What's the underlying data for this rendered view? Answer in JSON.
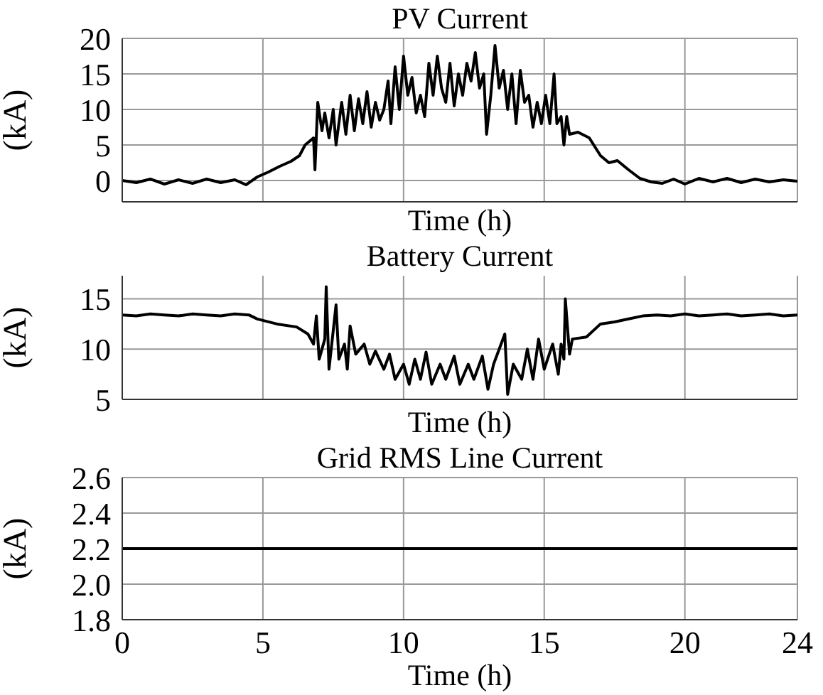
{
  "chart_data": [
    {
      "type": "line",
      "title": "PV Current",
      "xlabel": "Time (h)",
      "ylabel": "(kA)",
      "xlim": [
        0,
        24
      ],
      "xticks": [
        0,
        5,
        10,
        15,
        20,
        24
      ],
      "ylim": [
        -3,
        20
      ],
      "yticks": [
        0,
        5,
        10,
        15,
        20
      ],
      "grid": true,
      "tick_labels": "y",
      "series": [
        {
          "color": "#000000",
          "x": [
            0,
            0.5,
            1,
            1.5,
            2,
            2.5,
            3,
            3.5,
            4,
            4.4,
            4.8,
            5.2,
            5.6,
            6,
            6.3,
            6.5,
            6.8,
            6.85,
            6.95,
            7.1,
            7.2,
            7.35,
            7.5,
            7.6,
            7.8,
            7.95,
            8.1,
            8.25,
            8.4,
            8.55,
            8.7,
            8.85,
            9,
            9.15,
            9.3,
            9.45,
            9.55,
            9.7,
            9.85,
            10,
            10.15,
            10.3,
            10.45,
            10.6,
            10.75,
            10.9,
            11.05,
            11.2,
            11.35,
            11.5,
            11.65,
            11.8,
            11.95,
            12.1,
            12.25,
            12.4,
            12.55,
            12.7,
            12.85,
            12.95,
            13.1,
            13.25,
            13.4,
            13.55,
            13.7,
            13.85,
            14,
            14.15,
            14.3,
            14.45,
            14.6,
            14.75,
            14.9,
            15.05,
            15.2,
            15.35,
            15.45,
            15.6,
            15.7,
            15.8,
            15.9,
            16.2,
            16.6,
            17,
            17.3,
            17.6,
            18,
            18.4,
            18.8,
            19.2,
            19.6,
            20,
            20.5,
            21,
            21.5,
            22,
            22.5,
            23,
            23.5,
            24
          ],
          "values": [
            0,
            -0.3,
            0.2,
            -0.5,
            0.1,
            -0.4,
            0.2,
            -0.3,
            0.1,
            -0.6,
            0.5,
            1.2,
            2,
            2.7,
            3.5,
            5,
            6,
            1.5,
            11,
            7,
            9.5,
            6,
            10,
            5,
            11,
            6.5,
            12,
            7,
            11.5,
            8,
            12.5,
            7.5,
            11,
            8.5,
            10,
            14,
            8,
            16,
            10,
            17.5,
            12,
            14.5,
            9.5,
            12,
            9,
            16.5,
            12,
            17.5,
            13,
            11,
            16.5,
            10.5,
            15,
            12,
            16.5,
            14,
            18,
            13,
            15,
            6.5,
            12,
            19,
            13,
            15.5,
            10,
            15,
            8,
            15.5,
            11,
            12,
            7.5,
            11,
            8,
            12,
            8,
            15,
            8,
            9,
            5,
            9,
            6.5,
            6.8,
            6,
            3.5,
            2.5,
            2.8,
            1.5,
            0.3,
            -0.2,
            -0.4,
            0.2,
            -0.5,
            0.3,
            -0.2,
            0.3,
            -0.3,
            0.2,
            -0.2,
            0.1,
            -0.1
          ]
        }
      ]
    },
    {
      "type": "line",
      "title": "Battery Current",
      "xlabel": "Time (h)",
      "ylabel": "(kA)",
      "xlim": [
        0,
        24
      ],
      "xticks": [
        0,
        5,
        10,
        15,
        20,
        24
      ],
      "ylim": [
        5,
        17.3
      ],
      "yticks": [
        5,
        10,
        15
      ],
      "grid": true,
      "tick_labels": "y",
      "series": [
        {
          "color": "#000000",
          "x": [
            0,
            0.5,
            1,
            1.5,
            2,
            2.5,
            3,
            3.5,
            4,
            4.5,
            4.8,
            5.5,
            6.2,
            6.6,
            6.8,
            6.9,
            7,
            7.2,
            7.25,
            7.35,
            7.6,
            7.7,
            7.9,
            8,
            8.1,
            8.3,
            8.6,
            8.8,
            9,
            9.3,
            9.5,
            9.7,
            10,
            10.2,
            10.4,
            10.6,
            10.8,
            11,
            11.3,
            11.5,
            11.8,
            12,
            12.3,
            12.5,
            12.8,
            13,
            13.2,
            13.6,
            13.7,
            13.9,
            14.2,
            14.4,
            14.6,
            14.8,
            15,
            15.3,
            15.5,
            15.6,
            15.7,
            15.75,
            15.9,
            16,
            16.5,
            17,
            17.5,
            18,
            18.5,
            19,
            19.5,
            20,
            20.5,
            21,
            21.5,
            22,
            22.5,
            23,
            23.5,
            24
          ],
          "values": [
            13.4,
            13.3,
            13.5,
            13.4,
            13.3,
            13.5,
            13.4,
            13.3,
            13.5,
            13.4,
            13,
            12.5,
            12.2,
            11.5,
            10.5,
            13.3,
            9,
            11,
            16.2,
            8,
            14.4,
            9,
            10.5,
            8,
            12.3,
            9.5,
            10.5,
            8.5,
            9.8,
            8,
            9.5,
            7,
            8.5,
            6.5,
            9,
            7,
            9.7,
            6.5,
            8.5,
            7,
            9.3,
            6.5,
            8.5,
            7,
            9.3,
            6,
            8.5,
            11.5,
            5.5,
            8.5,
            7,
            10,
            7,
            11,
            8,
            10.5,
            7.5,
            10.5,
            9,
            15,
            9.5,
            11,
            11.2,
            12.5,
            12.7,
            13,
            13.3,
            13.4,
            13.3,
            13.5,
            13.3,
            13.4,
            13.5,
            13.3,
            13.4,
            13.5,
            13.3,
            13.4
          ]
        }
      ]
    },
    {
      "type": "line",
      "title": "Grid RMS Line Current",
      "xlabel": "Time (h)",
      "ylabel": "(kA)",
      "xlim": [
        0,
        24
      ],
      "xticks": [
        0,
        5,
        10,
        15,
        20,
        24
      ],
      "ylim": [
        1.8,
        2.6
      ],
      "yticks": [
        {
          "value": 1.8,
          "label": "1.8"
        },
        {
          "value": 2,
          "label": "2.0"
        },
        {
          "value": 2.2,
          "label": "2.2"
        },
        {
          "value": 2.4,
          "label": "2.4"
        },
        {
          "value": 2.6,
          "label": "2.6"
        }
      ],
      "grid": true,
      "series": [
        {
          "color": "#000000",
          "x": [
            0,
            6,
            12,
            18,
            24
          ],
          "values": [
            2.2,
            2.2,
            2.2,
            2.2,
            2.2
          ]
        }
      ]
    }
  ]
}
